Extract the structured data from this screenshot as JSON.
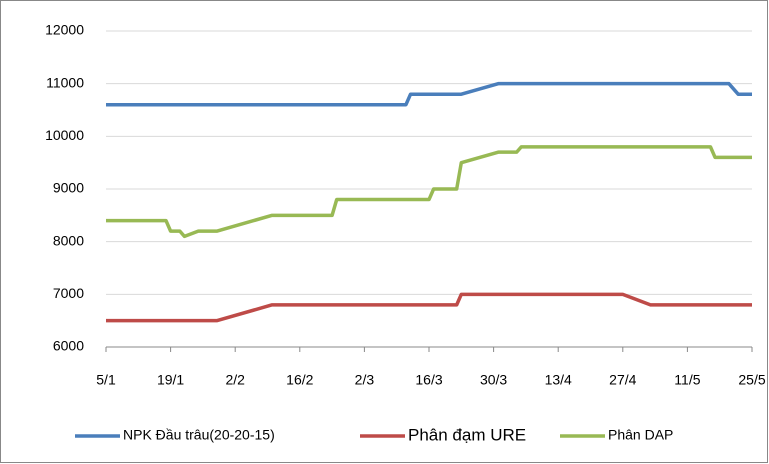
{
  "chart_data": {
    "type": "line",
    "xlim": [
      5,
      145
    ],
    "xticks": [
      {
        "value": 5,
        "label": "5/1"
      },
      {
        "value": 19,
        "label": "19/1"
      },
      {
        "value": 33,
        "label": "2/2"
      },
      {
        "value": 47,
        "label": "16/2"
      },
      {
        "value": 61,
        "label": "2/3"
      },
      {
        "value": 75,
        "label": "16/3"
      },
      {
        "value": 89,
        "label": "30/3"
      },
      {
        "value": 103,
        "label": "13/4"
      },
      {
        "value": 117,
        "label": "27/4"
      },
      {
        "value": 131,
        "label": "11/5"
      },
      {
        "value": 145,
        "label": "25/5"
      }
    ],
    "ylim": [
      6000,
      12000
    ],
    "yticks": [
      6000,
      7000,
      8000,
      9000,
      10000,
      11000,
      12000
    ],
    "grid": true,
    "legend": "bottom",
    "series": [
      {
        "name": "NPK Đầu trâu(20-20-15)",
        "color": "#4a7ebb",
        "x": [
          5,
          70,
          71,
          82,
          90,
          140,
          142,
          145
        ],
        "values": [
          10600,
          10600,
          10800,
          10800,
          11000,
          11000,
          10800,
          10800
        ]
      },
      {
        "name": "Phân đạm URE",
        "color": "#be4b48",
        "x": [
          5,
          29,
          41,
          81,
          82,
          117,
          123,
          145
        ],
        "values": [
          6500,
          6500,
          6800,
          6800,
          7000,
          7000,
          6800,
          6800
        ]
      },
      {
        "name": "Phân DAP",
        "color": "#98b954",
        "x": [
          5,
          18,
          19,
          21,
          22,
          25,
          29,
          41,
          54,
          55,
          75,
          76,
          81,
          82,
          90,
          94,
          95,
          136,
          137,
          145
        ],
        "values": [
          8400,
          8400,
          8200,
          8200,
          8100,
          8200,
          8200,
          8500,
          8500,
          8800,
          8800,
          9000,
          9000,
          9500,
          9700,
          9700,
          9800,
          9800,
          9600,
          9600
        ]
      }
    ]
  }
}
